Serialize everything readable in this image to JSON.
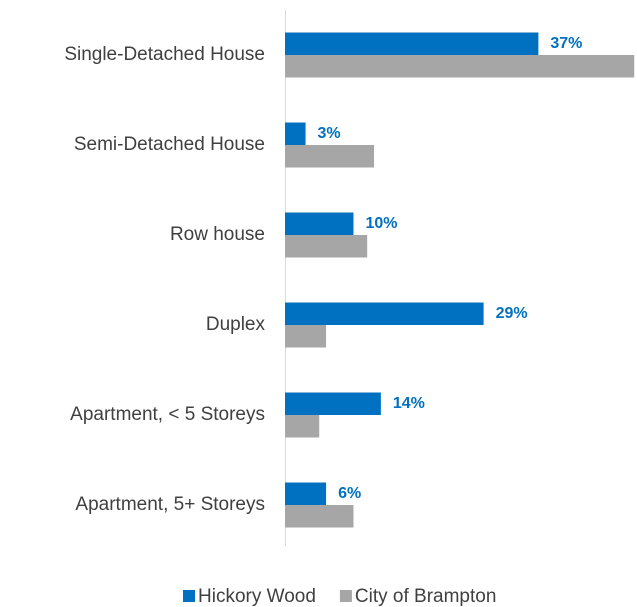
{
  "chart_data": {
    "type": "bar",
    "orientation": "horizontal",
    "categories": [
      "Single-Detached House",
      "Semi-Detached House",
      "Row house",
      "Duplex",
      "Apartment, < 5 Storeys",
      "Apartment, 5+ Storeys"
    ],
    "series": [
      {
        "name": "Hickory Wood",
        "color": "#0070c0",
        "values": [
          37,
          3,
          10,
          29,
          14,
          6
        ],
        "value_labels": [
          "37%",
          "3%",
          "10%",
          "29%",
          "14%",
          "6%"
        ]
      },
      {
        "name": "City of Brampton",
        "color": "#a6a6a6",
        "values": [
          51,
          13,
          12,
          6,
          5,
          10
        ]
      }
    ],
    "xlim": [
      0,
      51.4
    ],
    "legend": "bottom"
  }
}
